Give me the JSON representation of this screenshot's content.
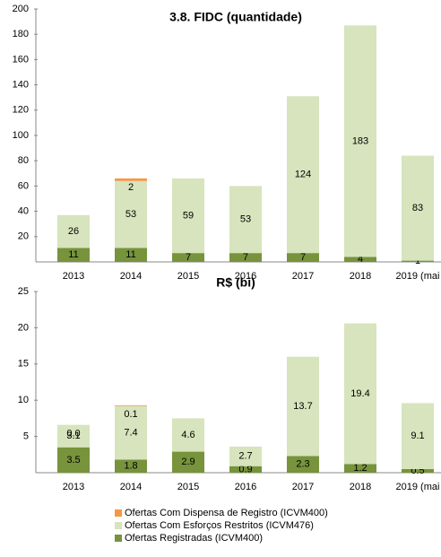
{
  "chart_data": [
    {
      "type": "bar",
      "title": "3.8. FIDC (quantidade)",
      "categories": [
        "2013",
        "2014",
        "2015",
        "2016",
        "2017",
        "2018",
        "2019 (mai"
      ],
      "series": [
        {
          "name": "Ofertas Registradas (ICVM400)",
          "color": "#77933c",
          "values": [
            11,
            11,
            7,
            7,
            7,
            4,
            1
          ]
        },
        {
          "name": "Ofertas Com Esforços Restritos (ICVM476)",
          "color": "#d7e4bd",
          "values": [
            26,
            53,
            59,
            53,
            124,
            183,
            83
          ]
        },
        {
          "name": "Ofertas Com Dispensa de Registro (ICVM400)",
          "color": "#f79646",
          "values": [
            null,
            2,
            null,
            null,
            null,
            null,
            null
          ]
        }
      ],
      "ylim": [
        0,
        200
      ],
      "yticks": [
        20,
        40,
        60,
        80,
        100,
        120,
        140,
        160,
        180,
        200
      ]
    },
    {
      "type": "bar",
      "title": "R$ (bi)",
      "categories": [
        "2013",
        "2014",
        "2015",
        "2016",
        "2017",
        "2018",
        "2019 (mai"
      ],
      "series": [
        {
          "color": "#77933c",
          "values": [
            3.5,
            1.8,
            2.9,
            0.9,
            2.3,
            1.2,
            0.5
          ]
        },
        {
          "color": "#d7e4bd",
          "values": [
            3.1,
            7.4,
            4.6,
            2.7,
            13.7,
            19.4,
            9.1
          ]
        },
        {
          "color": "#f79646",
          "values": [
            0,
            0.1,
            null,
            null,
            null,
            null,
            null
          ],
          "value_labels": [
            "0.0",
            "0.1",
            null,
            null,
            null,
            null,
            null
          ]
        }
      ],
      "ylim": [
        0,
        25
      ],
      "yticks": [
        5,
        10,
        15,
        20,
        25
      ]
    }
  ]
}
